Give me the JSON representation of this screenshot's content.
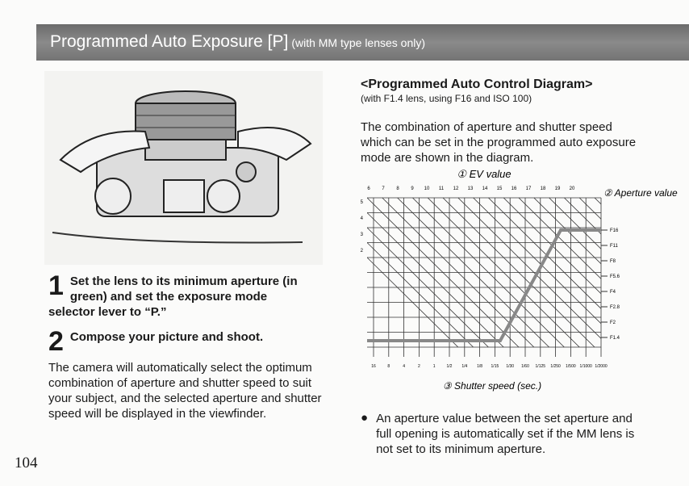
{
  "header": {
    "title": "Programmed Auto Exposure [P]",
    "subtitle": "(with MM type lenses only)"
  },
  "steps": [
    {
      "number": "1",
      "text": "Set the lens to its minimum aperture (in green) and set the exposure mode selector lever to “P.”"
    },
    {
      "number": "2",
      "text": "Compose your picture and shoot."
    }
  ],
  "body": "The camera will automatically select the optimum combination of aperture and shutter speed to suit your subject, and the selected aperture and shutter speed will be displayed in the viewfinder.",
  "page_number": "104",
  "diagram": {
    "heading": "<Programmed Auto Control Diagram>",
    "note": "(with F1.4 lens, using F16 and ISO 100)",
    "description": "The combination of aperture and shutter speed which can be set in the programmed auto exposure mode are shown in the diagram.",
    "ev_label": "① EV value",
    "ev_values": [
      "6",
      "7",
      "8",
      "9",
      "10",
      "11",
      "12",
      "13",
      "14",
      "15",
      "16",
      "17",
      "18",
      "19",
      "20"
    ],
    "left_values": [
      "5",
      "4",
      "3",
      "2"
    ],
    "aperture_label": "② Aperture value",
    "apertures": [
      "F16",
      "F11",
      "F8",
      "F5.6",
      "F4",
      "F2.8",
      "F2",
      "F1.4"
    ],
    "shutter_speeds": [
      "16",
      "8",
      "4",
      "2",
      "1",
      "1/2",
      "1/4",
      "1/8",
      "1/15",
      "1/30",
      "1/60",
      "1/125",
      "1/250",
      "1/500",
      "1/1000",
      "1/2000"
    ],
    "shutter_label": "③ Shutter speed (sec.)"
  },
  "bullet": "An aperture value between the set aperture and full opening is automatically set if the MM lens is not set to its minimum aperture."
}
